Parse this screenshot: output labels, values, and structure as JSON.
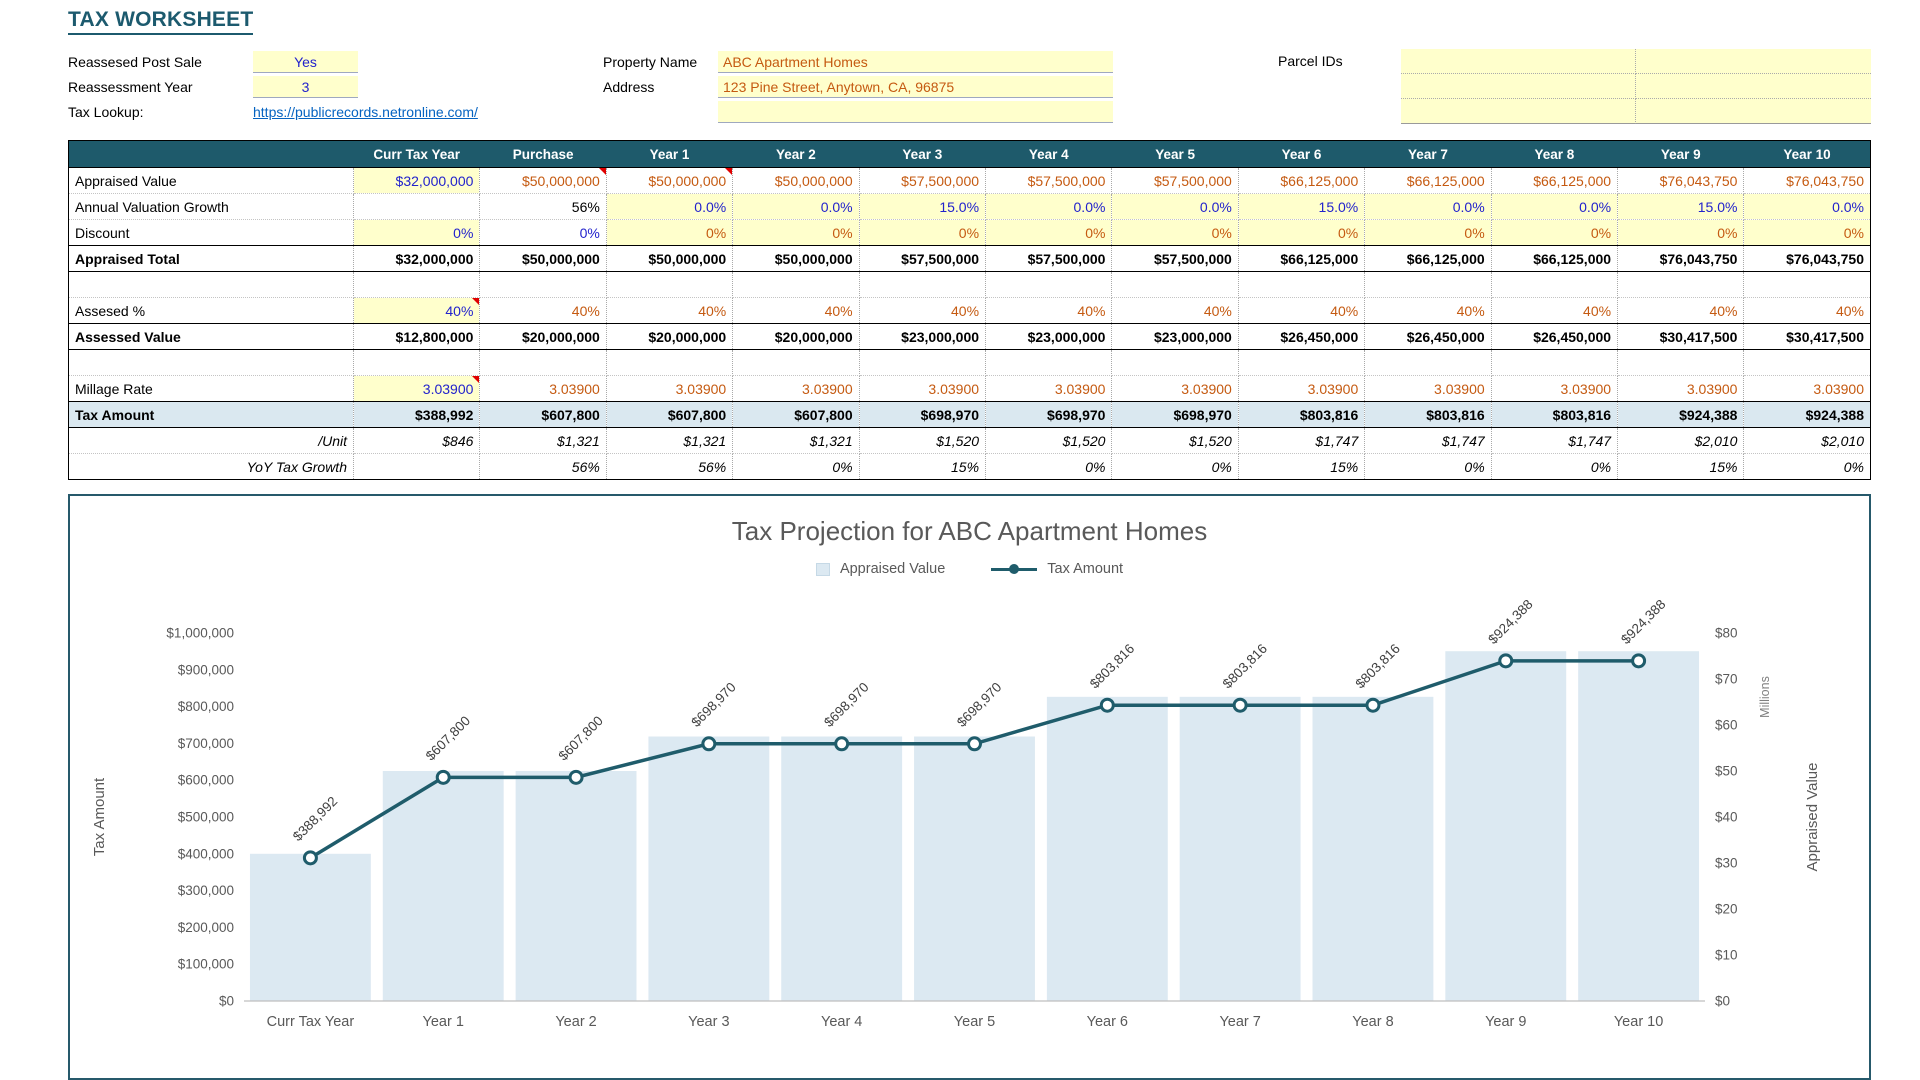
{
  "title": "TAX WORKSHEET",
  "info": {
    "reassessed_label": "Reassesed Post Sale",
    "reassessed_value": "Yes",
    "reassessment_year_label": "Reassessment Year",
    "reassessment_year_value": "3",
    "tax_lookup_label": "Tax Lookup:",
    "tax_lookup_url": "https://publicrecords.netronline.com/",
    "property_name_label": "Property Name",
    "property_name_value": "ABC Apartment Homes",
    "address_label": "Address",
    "address_value": "123 Pine Street, Anytown, CA, 96875",
    "parcel_ids_label": "Parcel IDs"
  },
  "table": {
    "columns": [
      "",
      "Curr Tax Year",
      "Purchase",
      "Year 1",
      "Year 2",
      "Year 3",
      "Year 4",
      "Year 5",
      "Year 6",
      "Year 7",
      "Year 8",
      "Year 9",
      "Year 10"
    ],
    "rows": [
      {
        "label": "Appraised Value",
        "label_class": "",
        "values": [
          "$32,000,000",
          "$50,000,000",
          "$50,000,000",
          "$50,000,000",
          "$57,500,000",
          "$57,500,000",
          "$57,500,000",
          "$66,125,000",
          "$66,125,000",
          "$66,125,000",
          "$76,043,750",
          "$76,043,750"
        ],
        "styles": [
          "in",
          "or tri",
          "or tri",
          "or",
          "or",
          "or",
          "or",
          "or",
          "or",
          "or",
          "or",
          "or"
        ],
        "row_class": ""
      },
      {
        "label": "Annual Valuation Growth",
        "label_class": "",
        "values": [
          "",
          "56%",
          "0.0%",
          "0.0%",
          "15.0%",
          "0.0%",
          "0.0%",
          "15.0%",
          "0.0%",
          "0.0%",
          "15.0%",
          "0.0%"
        ],
        "styles": [
          "",
          "k",
          "in",
          "in",
          "in",
          "in",
          "in",
          "in",
          "in",
          "in",
          "in",
          "in"
        ],
        "row_class": ""
      },
      {
        "label": "Discount",
        "label_class": "",
        "values": [
          "0%",
          "0%",
          "0%",
          "0%",
          "0%",
          "0%",
          "0%",
          "0%",
          "0%",
          "0%",
          "0%",
          "0%"
        ],
        "styles": [
          "in",
          "bl",
          "ory",
          "ory",
          "ory",
          "ory",
          "ory",
          "ory",
          "ory",
          "ory",
          "ory",
          "ory"
        ],
        "row_class": ""
      },
      {
        "label": "Appraised Total",
        "label_class": "lbl-bold",
        "values": [
          "$32,000,000",
          "$50,000,000",
          "$50,000,000",
          "$50,000,000",
          "$57,500,000",
          "$57,500,000",
          "$57,500,000",
          "$66,125,000",
          "$66,125,000",
          "$66,125,000",
          "$76,043,750",
          "$76,043,750"
        ],
        "styles": [
          "b",
          "b",
          "b",
          "b",
          "b",
          "b",
          "b",
          "b",
          "b",
          "b",
          "b",
          "b"
        ],
        "row_class": "row-total"
      },
      {
        "label": "",
        "label_class": "",
        "values": [
          "",
          "",
          "",
          "",
          "",
          "",
          "",
          "",
          "",
          "",
          "",
          ""
        ],
        "styles": [
          "",
          "",
          "",
          "",
          "",
          "",
          "",
          "",
          "",
          "",
          "",
          ""
        ],
        "row_class": ""
      },
      {
        "label": "Assesed %",
        "label_class": "",
        "values": [
          "40%",
          "40%",
          "40%",
          "40%",
          "40%",
          "40%",
          "40%",
          "40%",
          "40%",
          "40%",
          "40%",
          "40%"
        ],
        "styles": [
          "in tri",
          "or",
          "or",
          "or",
          "or",
          "or",
          "or",
          "or",
          "or",
          "or",
          "or",
          "or"
        ],
        "row_class": ""
      },
      {
        "label": "Assessed Value",
        "label_class": "lbl-bold",
        "values": [
          "$12,800,000",
          "$20,000,000",
          "$20,000,000",
          "$20,000,000",
          "$23,000,000",
          "$23,000,000",
          "$23,000,000",
          "$26,450,000",
          "$26,450,000",
          "$26,450,000",
          "$30,417,500",
          "$30,417,500"
        ],
        "styles": [
          "b",
          "b",
          "b",
          "b",
          "b",
          "b",
          "b",
          "b",
          "b",
          "b",
          "b",
          "b"
        ],
        "row_class": "row-total"
      },
      {
        "label": "",
        "label_class": "",
        "values": [
          "",
          "",
          "",
          "",
          "",
          "",
          "",
          "",
          "",
          "",
          "",
          ""
        ],
        "styles": [
          "",
          "",
          "",
          "",
          "",
          "",
          "",
          "",
          "",
          "",
          "",
          ""
        ],
        "row_class": ""
      },
      {
        "label": "Millage Rate",
        "label_class": "",
        "values": [
          "3.03900",
          "3.03900",
          "3.03900",
          "3.03900",
          "3.03900",
          "3.03900",
          "3.03900",
          "3.03900",
          "3.03900",
          "3.03900",
          "3.03900",
          "3.03900"
        ],
        "styles": [
          "in tri",
          "or",
          "or",
          "or",
          "or",
          "or",
          "or",
          "or",
          "or",
          "or",
          "or",
          "or"
        ],
        "row_class": ""
      },
      {
        "label": "Tax Amount",
        "label_class": "lbl-bold",
        "values": [
          "$388,992",
          "$607,800",
          "$607,800",
          "$607,800",
          "$698,970",
          "$698,970",
          "$698,970",
          "$803,816",
          "$803,816",
          "$803,816",
          "$924,388",
          "$924,388"
        ],
        "styles": [
          "b",
          "b",
          "b",
          "b",
          "b",
          "b",
          "b",
          "b",
          "b",
          "b",
          "b",
          "b"
        ],
        "row_class": "row-tax"
      },
      {
        "label": "/Unit",
        "label_class": "lbl-italic",
        "values": [
          "$846",
          "$1,321",
          "$1,321",
          "$1,321",
          "$1,520",
          "$1,520",
          "$1,520",
          "$1,747",
          "$1,747",
          "$1,747",
          "$2,010",
          "$2,010"
        ],
        "styles": [
          "i",
          "i",
          "i",
          "i",
          "i",
          "i",
          "i",
          "i",
          "i",
          "i",
          "i",
          "i"
        ],
        "row_class": ""
      },
      {
        "label": "YoY Tax Growth",
        "label_class": "lbl-italic",
        "values": [
          "",
          "56%",
          "56%",
          "0%",
          "15%",
          "0%",
          "0%",
          "15%",
          "0%",
          "0%",
          "15%",
          "0%"
        ],
        "styles": [
          "",
          "i",
          "i",
          "i",
          "i",
          "i",
          "i",
          "i",
          "i",
          "i",
          "i",
          "i"
        ],
        "row_class": ""
      }
    ]
  },
  "chart_data": {
    "type": "combo",
    "title": "Tax Projection for ABC Apartment Homes",
    "categories": [
      "Curr Tax Year",
      "Year 1",
      "Year 2",
      "Year 3",
      "Year 4",
      "Year 5",
      "Year 6",
      "Year 7",
      "Year 8",
      "Year 9",
      "Year 10"
    ],
    "series": [
      {
        "name": "Appraised Value",
        "type": "bar",
        "axis": "right",
        "values_millions": [
          32,
          50,
          50,
          57.5,
          57.5,
          57.5,
          66.125,
          66.125,
          66.125,
          76.04375,
          76.04375
        ]
      },
      {
        "name": "Tax Amount",
        "type": "line",
        "axis": "left",
        "values": [
          388992,
          607800,
          607800,
          698970,
          698970,
          698970,
          803816,
          803816,
          803816,
          924388,
          924388
        ],
        "labels": [
          "$388,992",
          "$607,800",
          "$607,800",
          "$698,970",
          "$698,970",
          "$698,970",
          "$803,816",
          "$803,816",
          "$803,816",
          "$924,388",
          "$924,388"
        ]
      }
    ],
    "left_axis": {
      "title": "Tax Amount",
      "min": 0,
      "max": 1000000,
      "step": 100000,
      "tick_labels": [
        "$0",
        "$100,000",
        "$200,000",
        "$300,000",
        "$400,000",
        "$500,000",
        "$600,000",
        "$700,000",
        "$800,000",
        "$900,000",
        "$1,000,000"
      ]
    },
    "right_axis": {
      "title": "Appraised Value",
      "units_label": "Millions",
      "min": 0,
      "max": 80,
      "step": 10,
      "tick_labels": [
        "$0",
        "$10",
        "$20",
        "$30",
        "$40",
        "$50",
        "$60",
        "$70",
        "$80"
      ]
    },
    "legend_position": "top",
    "grid": false,
    "colors": {
      "bar": "#DCE9F2",
      "line": "#1F5C6B"
    }
  }
}
